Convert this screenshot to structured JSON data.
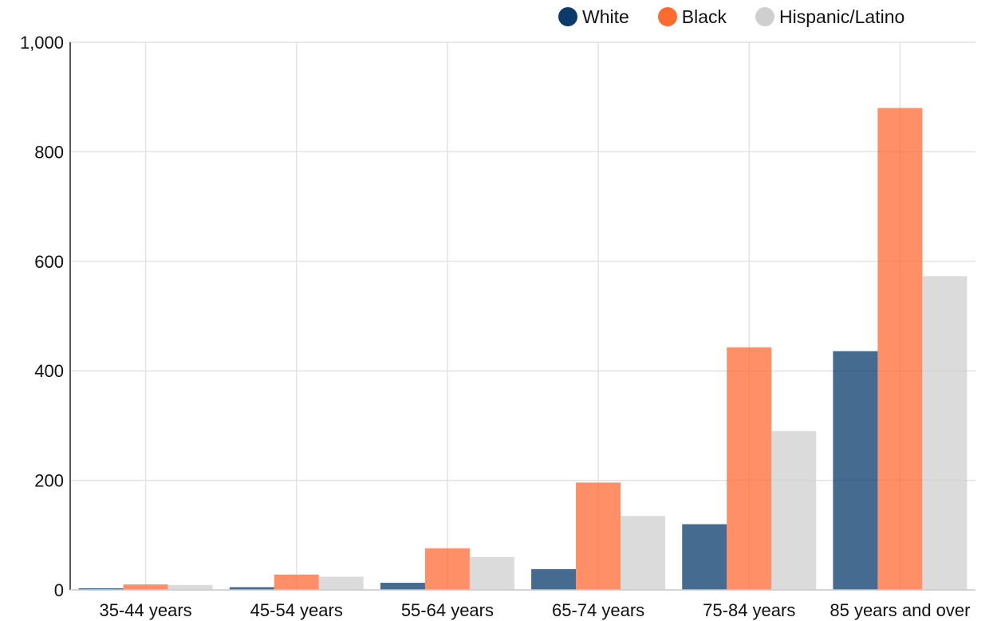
{
  "chart_data": {
    "type": "bar",
    "title": "",
    "xlabel": "",
    "ylabel": "",
    "ylim": [
      0,
      1000
    ],
    "yticks": [
      0,
      200,
      400,
      600,
      800,
      1000
    ],
    "ytick_labels": [
      "0",
      "200",
      "400",
      "600",
      "800",
      "1,000"
    ],
    "grid": true,
    "legend_position": "top-right",
    "categories": [
      "35-44 years",
      "45-54 years",
      "55-64 years",
      "65-74 years",
      "75-84 years",
      "85 years and over"
    ],
    "series": [
      {
        "name": "White",
        "color": "#073a6b",
        "legend_color": "#0b3a6b",
        "values": [
          3,
          5,
          13,
          38,
          120,
          436
        ]
      },
      {
        "name": "Black",
        "color": "#ff6a33",
        "legend_color": "#ff6a2e",
        "values": [
          10,
          28,
          76,
          196,
          443,
          880
        ]
      },
      {
        "name": "Hispanic/Latino",
        "color": "#cfcfcf",
        "legend_color": "#cfcfcf",
        "values": [
          9,
          24,
          60,
          135,
          290,
          573
        ]
      }
    ]
  }
}
